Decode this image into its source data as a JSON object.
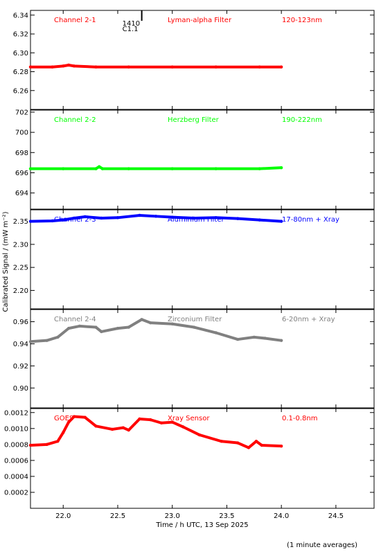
{
  "chart_data": {
    "type": "line",
    "xlabel": "Time / h UTC, 13 Sep 2025",
    "ylabel": "Calibrated Signal / (mW m⁻²)",
    "x_ticks": [
      22.0,
      22.5,
      23.0,
      23.5,
      24.0,
      24.5
    ],
    "x_tick_labels": [
      "22.0",
      "22.5",
      "23.0",
      "23.5",
      "24.0",
      "24.5"
    ],
    "xlim": [
      21.7,
      24.85
    ],
    "note": "(1 minute averages)",
    "flare_marker": {
      "x": 22.72,
      "label_time": "1410",
      "label_class": "C1.1"
    },
    "panels": [
      {
        "channel": "Channel 2-1",
        "filter": "Lyman-alpha Filter",
        "band": "120-123nm",
        "color": "#ff0000",
        "ylim": [
          6.24,
          6.345
        ],
        "yticks": [
          6.26,
          6.28,
          6.3,
          6.32,
          6.34
        ],
        "ytick_labels": [
          "6.26",
          "6.28",
          "6.30",
          "6.32",
          "6.34"
        ],
        "series": {
          "x": [
            21.7,
            21.9,
            22.0,
            22.05,
            22.1,
            22.3,
            22.6,
            23.0,
            23.4,
            23.8,
            24.0
          ],
          "y": [
            6.285,
            6.285,
            6.286,
            6.287,
            6.286,
            6.285,
            6.285,
            6.285,
            6.285,
            6.285,
            6.285
          ]
        }
      },
      {
        "channel": "Channel 2-2",
        "filter": "Herzberg Filter",
        "band": "190-222nm",
        "color": "#00ff00",
        "ylim": [
          692.4,
          702.2
        ],
        "yticks": [
          694,
          696,
          698,
          700,
          702
        ],
        "ytick_labels": [
          "694",
          "696",
          "698",
          "700",
          "702"
        ],
        "series": {
          "x": [
            21.7,
            22.0,
            22.3,
            22.33,
            22.36,
            22.6,
            23.0,
            23.4,
            23.8,
            24.0
          ],
          "y": [
            696.4,
            696.4,
            696.4,
            696.6,
            696.4,
            696.4,
            696.4,
            696.4,
            696.4,
            696.5
          ]
        }
      },
      {
        "channel": "Channel 2-3",
        "filter": "Aluminium Filter",
        "band": "17-80nm + Xray",
        "color": "#0000ff",
        "ylim": [
          2.16,
          2.375
        ],
        "yticks": [
          2.2,
          2.25,
          2.3,
          2.35
        ],
        "ytick_labels": [
          "2.20",
          "2.25",
          "2.30",
          "2.35"
        ],
        "series": {
          "x": [
            21.7,
            21.9,
            22.0,
            22.1,
            22.2,
            22.35,
            22.5,
            22.7,
            22.85,
            23.0,
            23.2,
            23.4,
            23.6,
            23.8,
            24.0
          ],
          "y": [
            2.35,
            2.351,
            2.353,
            2.357,
            2.36,
            2.357,
            2.358,
            2.363,
            2.361,
            2.359,
            2.357,
            2.358,
            2.356,
            2.353,
            2.35
          ]
        }
      },
      {
        "channel": "Channel 2-4",
        "filter": "Zirconium Filter",
        "band": "6-20nm + Xray",
        "color": "#808080",
        "ylim": [
          0.882,
          0.971
        ],
        "yticks": [
          0.9,
          0.92,
          0.94,
          0.96
        ],
        "ytick_labels": [
          "0.90",
          "0.92",
          "0.94",
          "0.96"
        ],
        "series": {
          "x": [
            21.7,
            21.85,
            21.95,
            22.05,
            22.15,
            22.3,
            22.35,
            22.5,
            22.6,
            22.72,
            22.8,
            23.0,
            23.2,
            23.4,
            23.6,
            23.75,
            23.85,
            24.0
          ],
          "y": [
            0.942,
            0.943,
            0.946,
            0.954,
            0.956,
            0.955,
            0.951,
            0.954,
            0.955,
            0.962,
            0.959,
            0.958,
            0.955,
            0.95,
            0.944,
            0.946,
            0.945,
            0.943
          ]
        }
      },
      {
        "channel": "GOES",
        "filter": "Xray Sensor",
        "band": "0.1-0.8nm",
        "color": "#ff0000",
        "ylim": [
          0.0,
          0.00125
        ],
        "yticks": [
          0.0002,
          0.0004,
          0.0006,
          0.0008,
          0.001,
          0.0012
        ],
        "ytick_labels": [
          "0.0002",
          "0.0004",
          "0.0006",
          "0.0008",
          "0.0010",
          "0.0012"
        ],
        "series": {
          "x": [
            21.7,
            21.85,
            21.95,
            22.0,
            22.05,
            22.1,
            22.2,
            22.3,
            22.45,
            22.55,
            22.6,
            22.7,
            22.8,
            22.9,
            23.0,
            23.1,
            23.25,
            23.45,
            23.6,
            23.7,
            23.77,
            23.82,
            24.0
          ],
          "y": [
            0.00079,
            0.0008,
            0.00084,
            0.00095,
            0.00108,
            0.00115,
            0.00114,
            0.00103,
            0.00099,
            0.00101,
            0.00098,
            0.00112,
            0.00111,
            0.00107,
            0.00108,
            0.00102,
            0.00092,
            0.00084,
            0.00082,
            0.00076,
            0.00084,
            0.00079,
            0.00078
          ]
        }
      }
    ]
  }
}
